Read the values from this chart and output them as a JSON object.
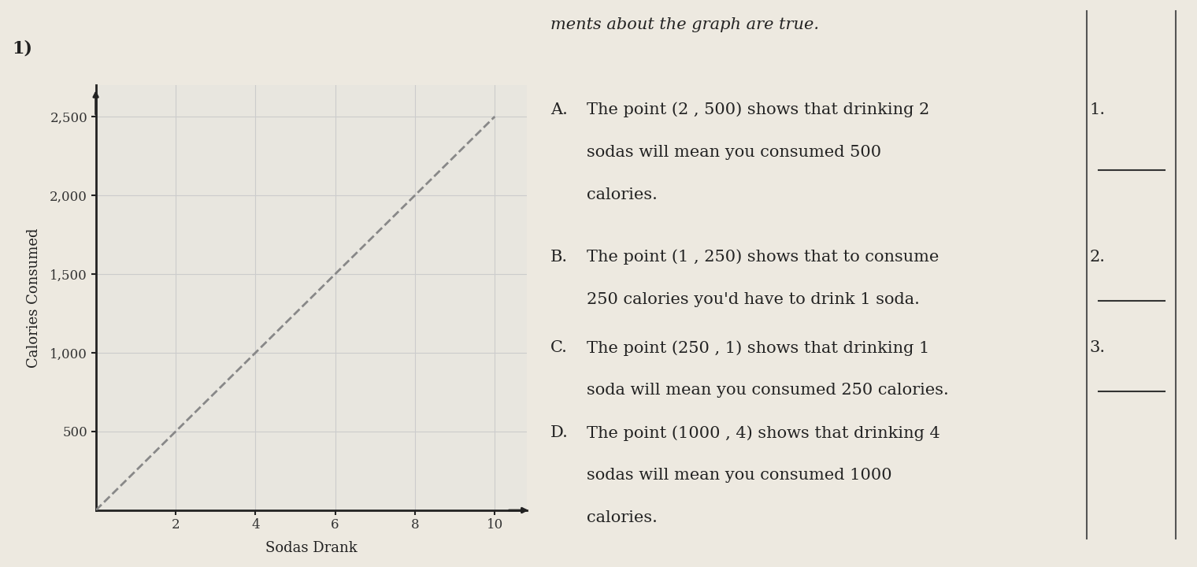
{
  "question_number": "1)",
  "graph": {
    "x_data": [
      0,
      1,
      2,
      3,
      4,
      5,
      6,
      7,
      8,
      9,
      10
    ],
    "y_data": [
      0,
      250,
      500,
      750,
      1000,
      1250,
      1500,
      1750,
      2000,
      2250,
      2500
    ],
    "x_label": "Sodas Drank",
    "y_label": "Calories Consumed",
    "x_ticks": [
      2,
      4,
      6,
      8,
      10
    ],
    "y_ticks": [
      500,
      1000,
      1500,
      2000,
      2500
    ],
    "y_tick_labels": [
      "500",
      "1,000",
      "1,500",
      "2,000",
      "2,500"
    ],
    "xlim": [
      0,
      10.8
    ],
    "ylim": [
      0,
      2700
    ],
    "line_color": "#888888",
    "line_style": "--",
    "line_width": 2.0,
    "grid_color": "#cccccc",
    "grid_lw": 0.8,
    "axis_color": "#222222",
    "background_color": "#e8e6df"
  },
  "text": {
    "header": "ments about the graph are true.",
    "option_A_label": "A.",
    "option_A_line1": "The point (2 , 500) shows that drinking 2",
    "option_A_line2": "sodas will mean you consumed 500",
    "option_A_line3": "calories.",
    "option_B_label": "B.",
    "option_B_line1": "The point (1 , 250) shows that to consume",
    "option_B_line2": "250 calories you'd have to drink 1 soda.",
    "option_C_label": "C.",
    "option_C_line1": "The point (250 , 1) shows that drinking 1",
    "option_C_line2": "soda will mean you consumed 250 calories.",
    "option_D_label": "D.",
    "option_D_line1": "The point (1000 , 4) shows that drinking 4",
    "option_D_line2": "sodas will mean you consumed 1000",
    "option_D_line3": "calories.",
    "right_nums": [
      "1.",
      "2.",
      "3."
    ],
    "font_size": 15,
    "label_font_size": 15,
    "header_font_size": 15
  },
  "bg_color": "#ede9e0",
  "paper_color": "#ede9e0",
  "right_panel_bg": "#f5f2eb",
  "divider_color": "#555555",
  "q_num_fontsize": 16
}
